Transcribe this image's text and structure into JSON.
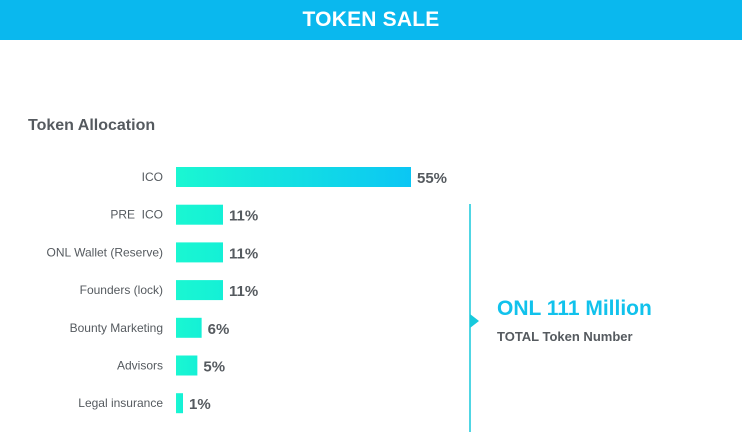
{
  "header": {
    "title": "TOKEN SALE"
  },
  "section": {
    "title": "Token Allocation"
  },
  "summary": {
    "value": "ONL 111 Million",
    "label": "TOTAL Token Number"
  },
  "colors": {
    "header": "#0ab8ee",
    "bar_start": "#1af7d2",
    "bar_end": "#0bc6f4",
    "accent": "#11c2ec",
    "text": "#555a5f"
  },
  "chart_data": {
    "type": "bar",
    "orientation": "horizontal",
    "title": "Token Allocation",
    "categories": [
      "ICO",
      "PRE  ICO",
      "ONL Wallet (Reserve)",
      "Founders (lock)",
      "Bounty Marketing",
      "Advisors",
      "Legal insurance"
    ],
    "values": [
      55,
      11,
      11,
      11,
      6,
      5,
      1
    ],
    "value_labels": [
      "55%",
      "11%",
      "11%",
      "11%",
      "6%",
      "5%",
      "1%"
    ],
    "unit": "%",
    "xlim": [
      0,
      55
    ],
    "grid": false,
    "legend": "none"
  }
}
